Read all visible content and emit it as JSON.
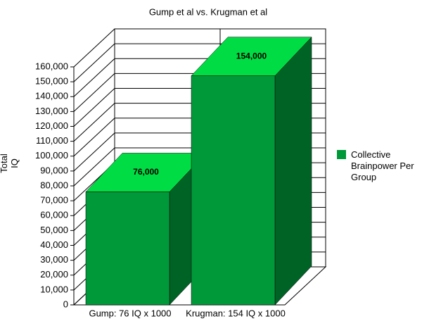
{
  "chart_data": {
    "type": "bar3d",
    "title": "Gump et al vs. Krugman et al",
    "y_label": "Total IQ",
    "categories": [
      "Gump: 76 IQ x 1000",
      "Krugman: 154 IQ x 1000"
    ],
    "series": [
      {
        "name": "Collective Brainpower Per Group",
        "color": "#00993a",
        "values": [
          76000,
          154000
        ],
        "value_labels": [
          "76,000",
          "154,000"
        ]
      }
    ],
    "ylim": [
      0,
      160000
    ],
    "yticks": [
      0,
      {
        "value": 10000,
        "label": "10,000"
      },
      {
        "value": 20000,
        "label": "20,000"
      },
      {
        "value": 30000,
        "label": "30,000"
      },
      {
        "value": 40000,
        "label": "40,000"
      },
      {
        "value": 50000,
        "label": "50,000"
      },
      {
        "value": 60000,
        "label": "60,000"
      },
      {
        "value": 70000,
        "label": "70,000"
      },
      {
        "value": 80000,
        "label": "80,000"
      },
      {
        "value": 90000,
        "label": "90,000"
      },
      {
        "value": 100000,
        "label": "100,000"
      },
      {
        "value": 110000,
        "label": "110,000"
      },
      {
        "value": 120000,
        "label": "120,000"
      },
      {
        "value": 130000,
        "label": "130,000"
      },
      {
        "value": 140000,
        "label": "140,000"
      },
      {
        "value": 150000,
        "label": "150,000"
      },
      {
        "value": 160000,
        "label": "160,000"
      }
    ],
    "grid": true,
    "legend": "right"
  }
}
